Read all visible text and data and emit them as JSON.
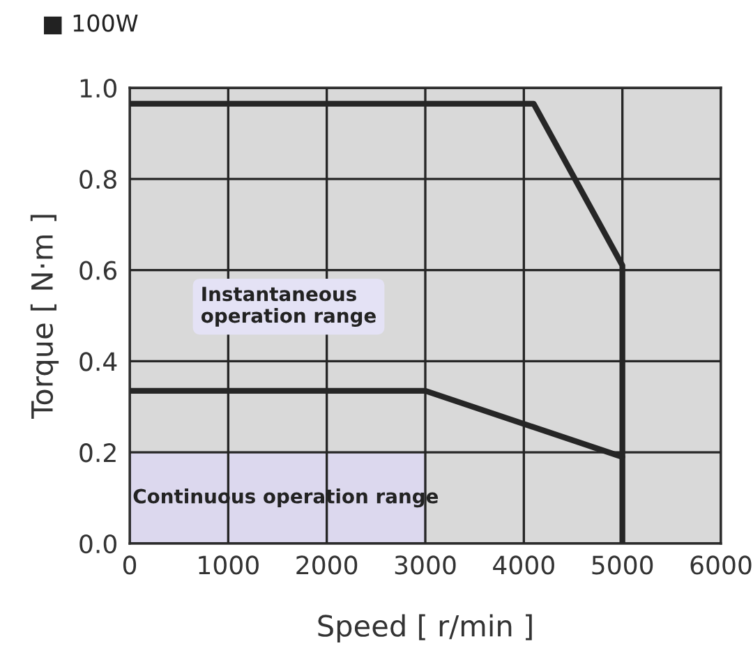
{
  "chart_data": {
    "type": "line",
    "title": "■ 100W",
    "xlabel": "Speed [ r/min ]",
    "ylabel": "Torque [ N·m ]",
    "series": [
      {
        "type": "area",
        "color": "#dcd8ee",
        "x": [
          0,
          3000
        ],
        "values": [
          0.2,
          0.2
        ]
      },
      {
        "color": "#262626",
        "x": [
          0,
          4100,
          5000,
          5000
        ],
        "values": [
          0.965,
          0.965,
          0.61,
          0
        ]
      },
      {
        "color": "#262626",
        "x": [
          0,
          3000,
          5000
        ],
        "values": [
          0.335,
          0.335,
          0.19
        ]
      }
    ],
    "annotations": [
      "Instantaneous\noperation range",
      "Continuous operation range"
    ],
    "xlim": [
      0,
      6000
    ],
    "xticks": [
      0,
      1000,
      2000,
      3000,
      4000,
      5000,
      6000
    ],
    "ylim": [
      0,
      1.0
    ],
    "yticks": [
      {
        "value": 0,
        "label": "0.0"
      },
      {
        "value": 0.2,
        "label": "0.2"
      },
      {
        "value": 0.4,
        "label": "0.4"
      },
      {
        "value": 0.6,
        "label": "0.6"
      },
      {
        "value": 0.8,
        "label": "0.8"
      },
      {
        "value": 1.0,
        "label": "1.0"
      }
    ],
    "grid": true,
    "legend": false
  }
}
